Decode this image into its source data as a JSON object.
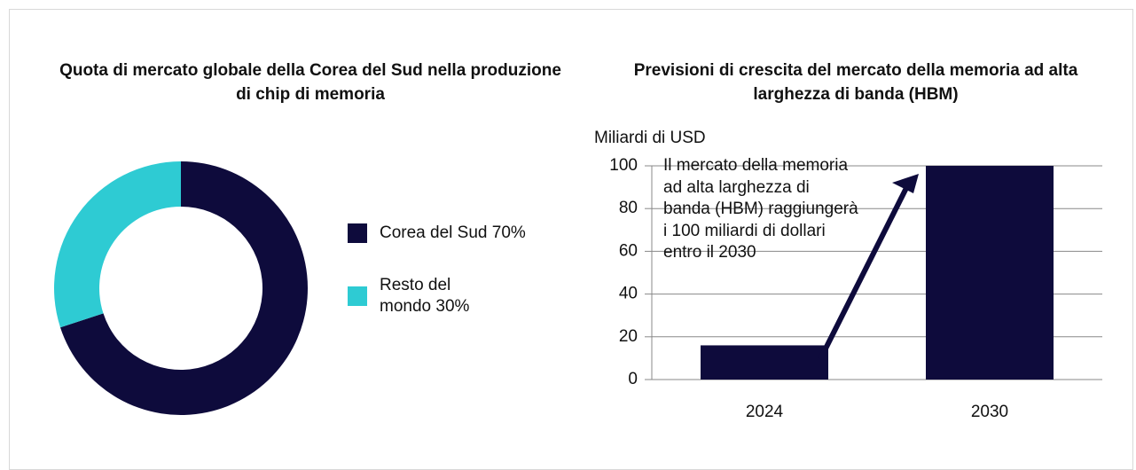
{
  "chart_data": [
    {
      "type": "donut",
      "title": "Quota di mercato globale della Corea del Sud nella produzione di chip di memoria",
      "categories": [
        "Corea del Sud 70%",
        "Resto del mondo 30%"
      ],
      "values": [
        70,
        30
      ],
      "colors": [
        "#0e0b3c",
        "#2ecbd3"
      ]
    },
    {
      "type": "bar",
      "title": "Previsioni di crescita del mercato della memoria ad alta larghezza di banda (HBM)",
      "y_label": "Miliardi di USD",
      "categories": [
        "2024",
        "2030"
      ],
      "values": [
        16,
        100
      ],
      "color": "#0e0b3c",
      "ylim": [
        0,
        100
      ],
      "yticks": [
        0,
        20,
        40,
        60,
        80,
        100
      ],
      "grid": true,
      "annotation": "Il mercato della memoria ad alta larghezza di banda (HBM) raggiungerà i 100 miliardi di dollari entro il 2030"
    }
  ]
}
